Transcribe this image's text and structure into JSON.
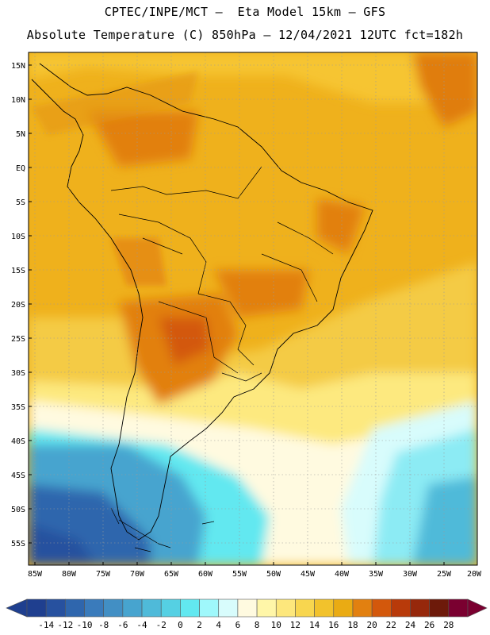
{
  "header": {
    "line1": "CPTEC/INPE/MCT –  Eta Model 15km – GFS",
    "line2": "Absolute Temperature (C) 850hPa – 12/04/2021 12UTC fct=182h"
  },
  "axes": {
    "lat_labels": [
      "15N",
      "10N",
      "5N",
      "EQ",
      "5S",
      "10S",
      "15S",
      "20S",
      "25S",
      "30S",
      "35S",
      "40S",
      "45S",
      "50S",
      "55S"
    ],
    "lon_labels": [
      "85W",
      "80W",
      "75W",
      "70W",
      "65W",
      "60W",
      "55W",
      "50W",
      "45W",
      "40W",
      "35W",
      "30W",
      "25W",
      "20W"
    ]
  },
  "colorbar": {
    "labels": [
      "-14",
      "-12",
      "-10",
      "-8",
      "-6",
      "-4",
      "-2",
      "0",
      "2",
      "4",
      "6",
      "8",
      "10",
      "12",
      "14",
      "16",
      "18",
      "20",
      "22",
      "24",
      "26",
      "28"
    ],
    "colors": [
      "#1f3f8f",
      "#27519f",
      "#2f66ad",
      "#3a7bbb",
      "#428fc4",
      "#47a4cf",
      "#4fbad9",
      "#55d0e3",
      "#62e8f0",
      "#9ff8fb",
      "#d8fcfc",
      "#fffae0",
      "#fff6a8",
      "#fde77c",
      "#f8d64f",
      "#f2c22c",
      "#eaab13",
      "#e28010",
      "#d3580c",
      "#b83a0a",
      "#96280b",
      "#6d1a0a",
      "#7a0030"
    ]
  }
}
